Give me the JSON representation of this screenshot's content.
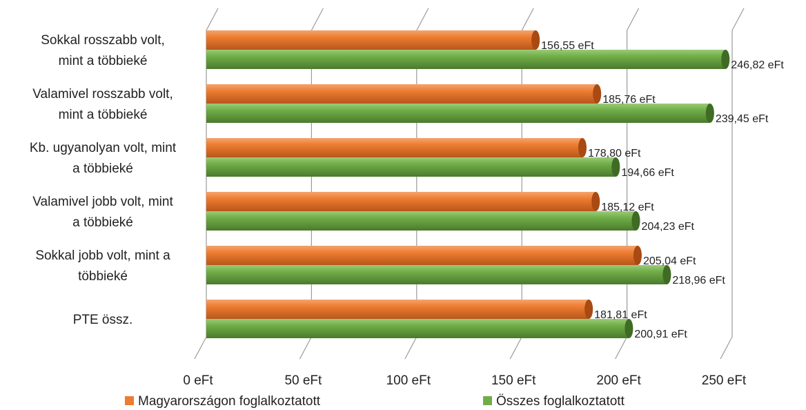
{
  "chart_data": {
    "type": "bar",
    "orientation": "horizontal",
    "style": "3d-cylinder",
    "categories": [
      [
        "Sokkal rosszabb volt,",
        "mint a többieké"
      ],
      [
        "Valamivel rosszabb volt,",
        "mint a többieké"
      ],
      [
        "Kb. ugyanolyan volt, mint",
        "a többieké"
      ],
      [
        "Valamivel jobb volt, mint",
        "a többieké"
      ],
      [
        "Sokkal jobb volt, mint a",
        "többieké"
      ],
      [
        "PTE össz."
      ]
    ],
    "series": [
      {
        "name": "Magyarországon foglalkoztatott",
        "color": "#ED7D31",
        "values": [
          156.55,
          185.76,
          178.8,
          185.12,
          205.04,
          181.81
        ],
        "labels": [
          "156,55 eFt",
          "185,76 eFt",
          "178,80 eFt",
          "185,12 eFt",
          "205,04 eFt",
          "181,81 eFt"
        ]
      },
      {
        "name": "Összes foglalkoztatott",
        "color": "#70AD47",
        "values": [
          246.82,
          239.45,
          194.66,
          204.23,
          218.96,
          200.91
        ],
        "labels": [
          "246,82 eFt",
          "239,45 eFt",
          "194,66 eFt",
          "204,23 eFt",
          "218,96 eFt",
          "200,91 eFt"
        ]
      }
    ],
    "xlim": [
      0,
      250
    ],
    "x_ticks": [
      0,
      50,
      100,
      150,
      200,
      250
    ],
    "x_tick_labels": [
      "0 eFt",
      "50 eFt",
      "100 eFt",
      "150 eFt",
      "200 eFt",
      "250 eFt"
    ],
    "grid": true,
    "legend_position": "bottom"
  }
}
